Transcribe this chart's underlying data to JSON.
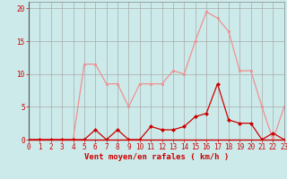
{
  "x": [
    0,
    1,
    2,
    3,
    4,
    5,
    6,
    7,
    8,
    9,
    10,
    11,
    12,
    13,
    14,
    15,
    16,
    17,
    18,
    19,
    20,
    21,
    22,
    23
  ],
  "rafales": [
    0,
    0,
    0,
    0,
    0,
    11.5,
    11.5,
    8.5,
    8.5,
    5.0,
    8.5,
    8.5,
    8.5,
    10.5,
    10.0,
    15.0,
    19.5,
    18.5,
    16.5,
    10.5,
    10.5,
    5.0,
    0,
    5.0
  ],
  "moyen": [
    0,
    0,
    0,
    0,
    0,
    0,
    1.5,
    0,
    1.5,
    0,
    0,
    2.0,
    1.5,
    1.5,
    2.0,
    3.5,
    4.0,
    8.5,
    3.0,
    2.5,
    2.5,
    0,
    1.0,
    0
  ],
  "xlabel": "Vent moyen/en rafales ( km/h )",
  "ylim": [
    0,
    21
  ],
  "xlim": [
    0,
    23
  ],
  "yticks": [
    0,
    5,
    10,
    15,
    20
  ],
  "xticks": [
    0,
    1,
    2,
    3,
    4,
    5,
    6,
    7,
    8,
    9,
    10,
    11,
    12,
    13,
    14,
    15,
    16,
    17,
    18,
    19,
    20,
    21,
    22,
    23
  ],
  "bg_color": "#cceaea",
  "grid_color": "#aaaaaa",
  "line_color_rafales": "#f09090",
  "line_color_moyen": "#cc0000",
  "marker_color_rafales": "#f09090",
  "marker_color_moyen": "#cc0000",
  "tick_color": "#cc0000",
  "label_fontsize": 5.5,
  "xlabel_fontsize": 6.5
}
